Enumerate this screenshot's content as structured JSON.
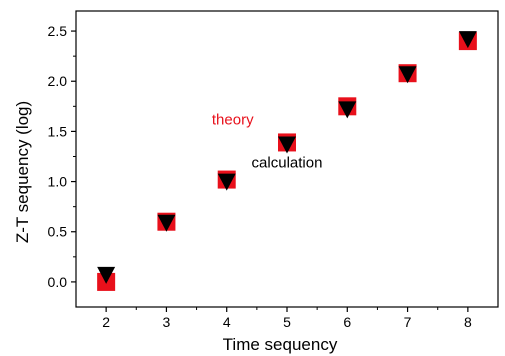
{
  "chart_data": {
    "type": "scatter",
    "title": "",
    "xlabel": "Time sequency",
    "ylabel": "Z-T sequency (log)",
    "xlim": [
      1.5,
      8.5
    ],
    "ylim": [
      -0.25,
      2.7
    ],
    "x_ticks": [
      "2",
      "3",
      "4",
      "5",
      "6",
      "7",
      "8"
    ],
    "y_ticks": [
      "0.0",
      "0.5",
      "1.0",
      "1.5",
      "2.0",
      "2.5"
    ],
    "grid": false,
    "series": [
      {
        "name": "theory",
        "marker": "square",
        "color": "#e8101b",
        "x": [
          2,
          3,
          4,
          5,
          6,
          7,
          8
        ],
        "y": [
          0.0,
          0.6,
          1.02,
          1.39,
          1.75,
          2.08,
          2.4
        ]
      },
      {
        "name": "calculation",
        "marker": "triangle-down",
        "color": "#000000",
        "x": [
          2,
          3,
          4,
          5,
          6,
          7,
          8
        ],
        "y": [
          0.07,
          0.59,
          1.0,
          1.37,
          1.72,
          2.07,
          2.42
        ]
      }
    ],
    "annotations": [
      {
        "text": "theory",
        "color": "#e8101b",
        "x": 4.1,
        "y": 1.57
      },
      {
        "text": "calculation",
        "color": "#000000",
        "x": 5.0,
        "y": 1.14
      }
    ]
  }
}
